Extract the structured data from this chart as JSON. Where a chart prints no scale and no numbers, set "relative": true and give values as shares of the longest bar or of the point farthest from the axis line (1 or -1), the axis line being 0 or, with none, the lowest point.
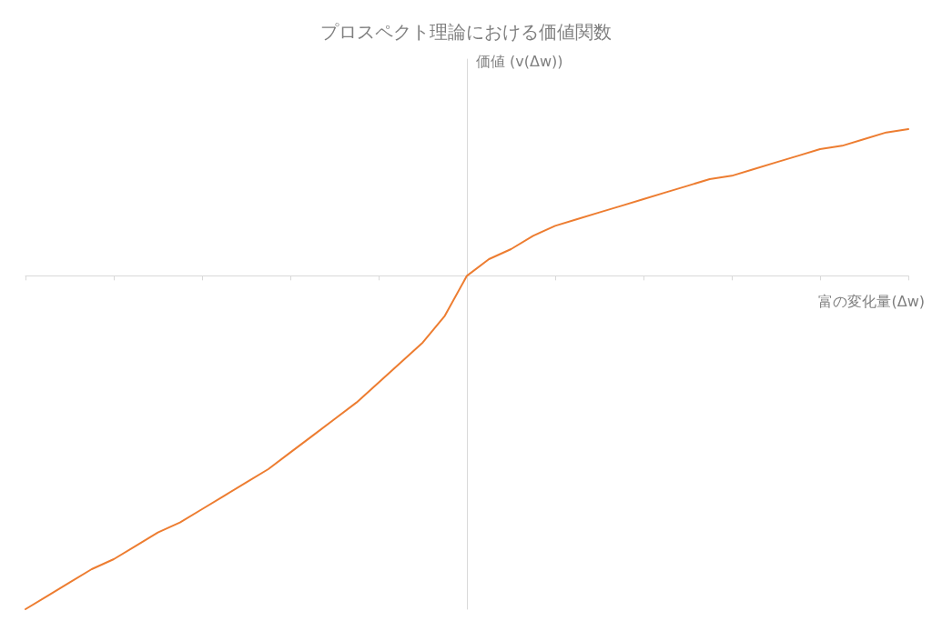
{
  "chart_data": {
    "type": "line",
    "title": "プロスペクト理論における価値関数",
    "xlabel": "富の変化量(Δw)",
    "ylabel": "価値 (v(Δw))",
    "relative": true,
    "grid": false,
    "marker": "none",
    "color": "#ed7d31",
    "categories": [
      null,
      null,
      null,
      null,
      null,
      null,
      null,
      null,
      null,
      null,
      null,
      null,
      null,
      null,
      null,
      null,
      null,
      null,
      null,
      null,
      null,
      null,
      null,
      null,
      null,
      null,
      null,
      null,
      null,
      null,
      null,
      null,
      null,
      null,
      null,
      null,
      null,
      null,
      null,
      null,
      null
    ],
    "values": [
      -1,
      -0.96,
      -0.92,
      -0.88,
      -0.85,
      -0.81,
      -0.77,
      -0.74,
      -0.7,
      -0.66,
      -0.62,
      -0.58,
      -0.53,
      -0.48,
      -0.43,
      -0.38,
      -0.32,
      -0.26,
      -0.2,
      -0.12,
      0,
      0.05,
      0.08,
      0.12,
      0.15,
      0.17,
      0.19,
      0.21,
      0.23,
      0.25,
      0.27,
      0.29,
      0.3,
      0.32,
      0.34,
      0.36,
      0.38,
      0.39,
      0.41,
      0.43,
      0.44
    ]
  }
}
